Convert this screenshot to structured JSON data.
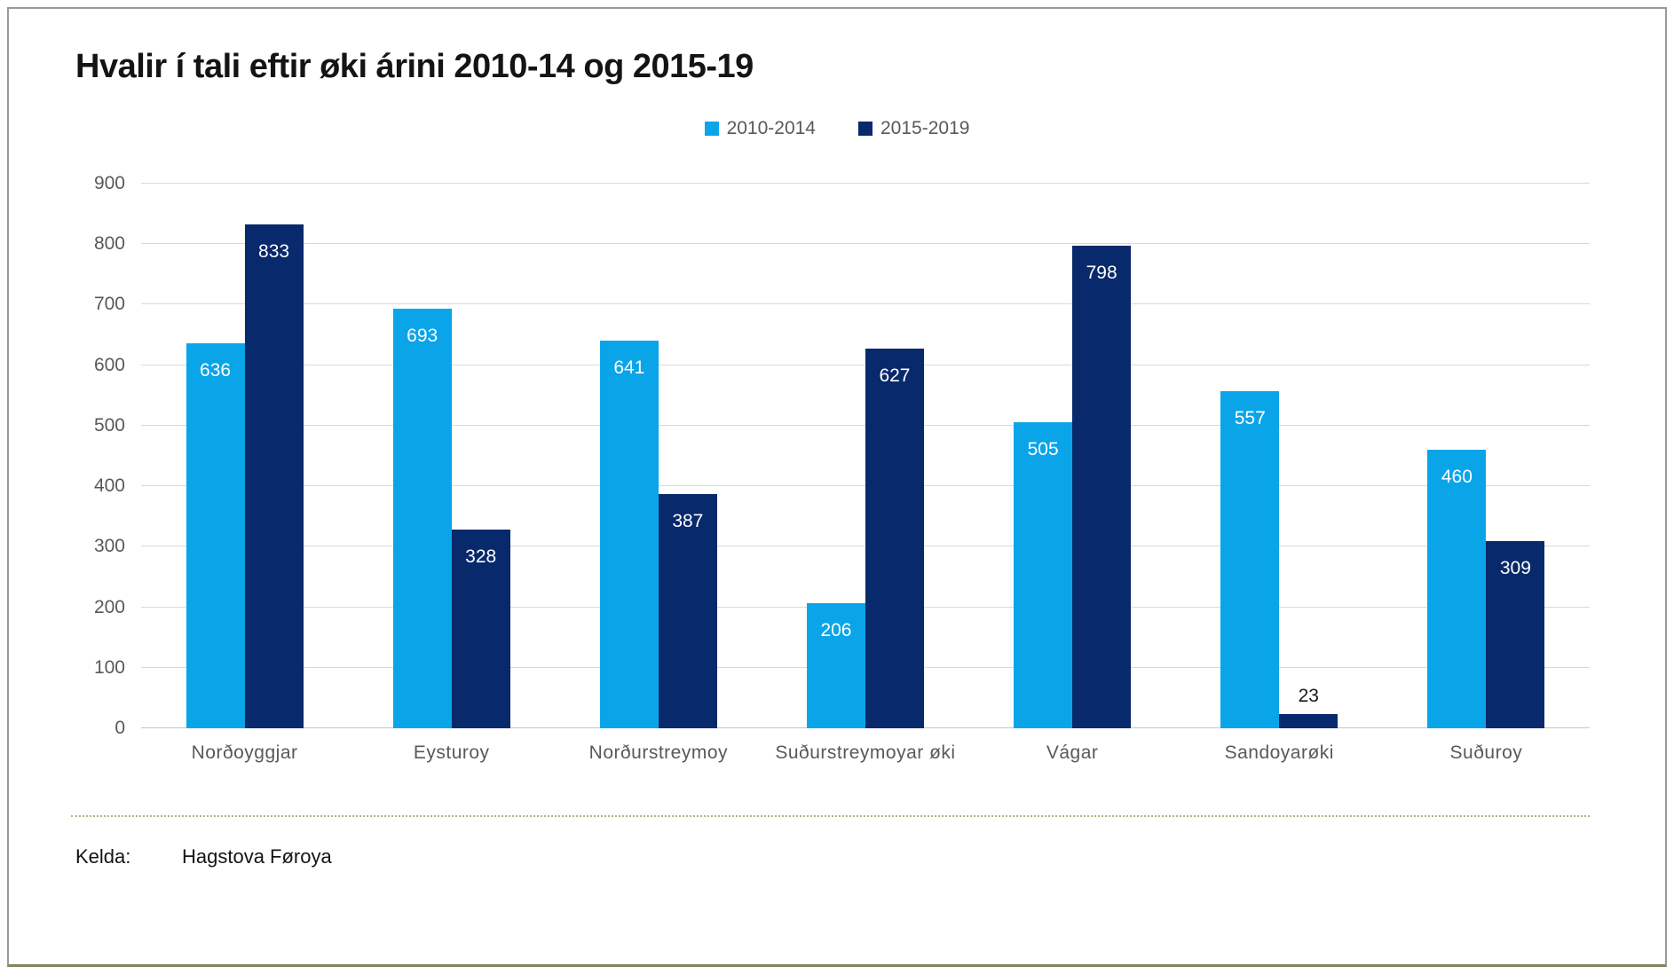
{
  "chart_data": {
    "type": "bar",
    "title": "Hvalir í tali eftir øki árini 2010-14 og 2015-19",
    "categories": [
      "Norðoyggjar",
      "Eysturoy",
      "Norðurstreymoy",
      "Suðurstreymoyar øki",
      "Vágar",
      "Sandoyarøki",
      "Suðuroy"
    ],
    "series": [
      {
        "name": "2010-2014",
        "color": "#0aa5e9",
        "values": [
          636,
          693,
          641,
          206,
          505,
          557,
          460
        ]
      },
      {
        "name": "2015-2019",
        "color": "#08296b",
        "values": [
          833,
          328,
          387,
          627,
          798,
          23,
          309
        ]
      }
    ],
    "ylim": [
      0,
      900
    ],
    "ytick_step": 100,
    "grid": true,
    "legend_position": "top-center",
    "xlabel": "",
    "ylabel": ""
  },
  "footer": {
    "source_label": "Kelda:",
    "source_value": "Hagstova Føroya"
  },
  "colors": {
    "series_2010_2014": "#0aa5e9",
    "series_2015_2019": "#08296b",
    "gridline": "#d9d9d9",
    "axis_text": "#595959",
    "title_text": "#141414",
    "divider": "#b5b183",
    "frame_border": "#9a9a9a",
    "frame_bottom": "#84845c"
  }
}
